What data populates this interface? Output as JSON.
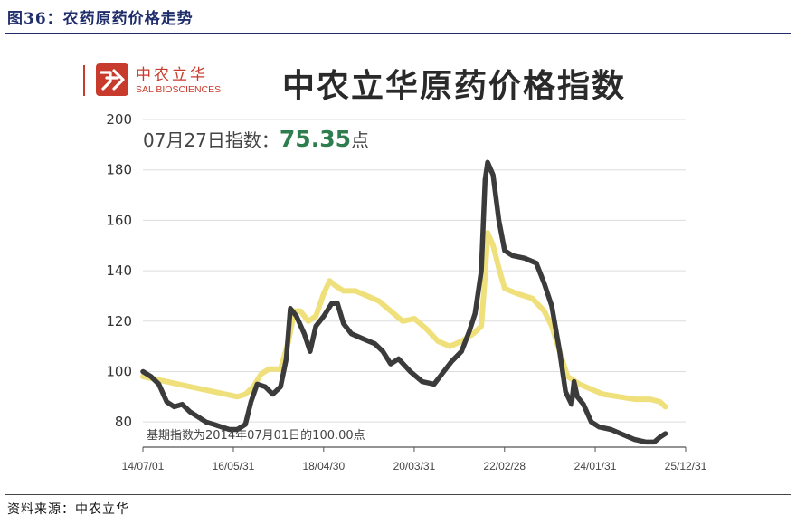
{
  "figure": {
    "caption": "图36：农药原药价格走势",
    "source": "资料来源：中农立华"
  },
  "logo": {
    "cn": "中农立华",
    "en": "SAL BIOSCIENCES",
    "color": "#c83b2c"
  },
  "chart_data": {
    "type": "line",
    "title": "中农立华原药价格指数",
    "xlabel": "",
    "ylabel": "",
    "ylim": [
      70,
      200
    ],
    "yticks": [
      80,
      100,
      120,
      140,
      160,
      180,
      200
    ],
    "xlim": [
      "2014-07-01",
      "2025-12-31"
    ],
    "xtick_labels": [
      "14/07/01",
      "16/05/31",
      "18/04/30",
      "20/03/31",
      "22/02/28",
      "24/01/31",
      "25/12/31"
    ],
    "xticks": [
      "2014-07-01",
      "2016-05-31",
      "2018-04-30",
      "2020-03-31",
      "2022-02-28",
      "2024-01-31",
      "2025-12-31"
    ],
    "grid": "horizontal",
    "legend": "none",
    "annotations": {
      "latest_prefix": "07月27日指数：",
      "latest_value": "75.35",
      "latest_suffix": "点",
      "base_note": "基期指数为2014年07月01日的100.00点"
    },
    "colors": {
      "black_series": "#3b3b3b",
      "yellow_series": "#efe07c",
      "value_highlight": "#2e7d4f",
      "grid": "#dddddd"
    },
    "series": [
      {
        "color": "#3b3b3b",
        "points": [
          [
            "2014-07-01",
            100
          ],
          [
            "2014-09-01",
            98
          ],
          [
            "2014-11-01",
            95
          ],
          [
            "2015-01-01",
            88
          ],
          [
            "2015-03-01",
            86
          ],
          [
            "2015-05-01",
            87
          ],
          [
            "2015-07-01",
            84
          ],
          [
            "2015-09-01",
            82
          ],
          [
            "2015-11-01",
            80
          ],
          [
            "2016-01-01",
            79
          ],
          [
            "2016-03-01",
            78
          ],
          [
            "2016-05-01",
            77
          ],
          [
            "2016-07-01",
            77
          ],
          [
            "2016-09-01",
            79
          ],
          [
            "2016-10-15",
            88
          ],
          [
            "2016-12-01",
            95
          ],
          [
            "2017-02-01",
            94
          ],
          [
            "2017-04-01",
            91
          ],
          [
            "2017-06-01",
            94
          ],
          [
            "2017-07-15",
            105
          ],
          [
            "2017-08-15",
            125
          ],
          [
            "2017-10-01",
            122
          ],
          [
            "2017-12-01",
            115
          ],
          [
            "2018-01-15",
            108
          ],
          [
            "2018-03-01",
            118
          ],
          [
            "2018-05-01",
            122
          ],
          [
            "2018-07-01",
            127
          ],
          [
            "2018-08-15",
            127
          ],
          [
            "2018-10-01",
            119
          ],
          [
            "2018-12-01",
            115
          ],
          [
            "2019-03-01",
            113
          ],
          [
            "2019-06-01",
            111
          ],
          [
            "2019-08-01",
            108
          ],
          [
            "2019-10-01",
            103
          ],
          [
            "2019-12-01",
            105
          ],
          [
            "2020-03-01",
            100
          ],
          [
            "2020-06-01",
            96
          ],
          [
            "2020-09-01",
            95
          ],
          [
            "2020-11-15",
            100
          ],
          [
            "2021-01-15",
            104
          ],
          [
            "2021-04-01",
            108
          ],
          [
            "2021-06-01",
            116
          ],
          [
            "2021-07-15",
            123
          ],
          [
            "2021-09-01",
            140
          ],
          [
            "2021-10-01",
            176
          ],
          [
            "2021-10-20",
            183
          ],
          [
            "2021-12-01",
            178
          ],
          [
            "2022-01-15",
            160
          ],
          [
            "2022-03-01",
            148
          ],
          [
            "2022-05-01",
            146
          ],
          [
            "2022-08-01",
            145
          ],
          [
            "2022-11-01",
            143
          ],
          [
            "2023-01-01",
            135
          ],
          [
            "2023-03-01",
            126
          ],
          [
            "2023-05-01",
            108
          ],
          [
            "2023-06-15",
            92
          ],
          [
            "2023-08-01",
            87
          ],
          [
            "2023-08-20",
            96
          ],
          [
            "2023-09-15",
            90
          ],
          [
            "2023-11-01",
            87
          ],
          [
            "2024-01-01",
            80
          ],
          [
            "2024-03-01",
            78
          ],
          [
            "2024-06-01",
            77
          ],
          [
            "2024-09-01",
            75
          ],
          [
            "2024-12-01",
            73
          ],
          [
            "2025-03-01",
            72
          ],
          [
            "2025-05-01",
            72
          ],
          [
            "2025-06-15",
            74
          ],
          [
            "2025-07-27",
            75.35
          ]
        ]
      },
      {
        "color": "#efe07c",
        "points": [
          [
            "2014-07-01",
            98
          ],
          [
            "2014-10-01",
            97
          ],
          [
            "2015-01-01",
            96
          ],
          [
            "2015-04-01",
            95
          ],
          [
            "2015-07-01",
            94
          ],
          [
            "2015-10-01",
            93
          ],
          [
            "2016-01-01",
            92
          ],
          [
            "2016-04-01",
            91
          ],
          [
            "2016-07-01",
            90
          ],
          [
            "2016-09-01",
            91
          ],
          [
            "2016-11-01",
            94
          ],
          [
            "2017-01-01",
            99
          ],
          [
            "2017-03-01",
            101
          ],
          [
            "2017-06-01",
            101
          ],
          [
            "2017-08-01",
            112
          ],
          [
            "2017-09-15",
            124
          ],
          [
            "2017-11-01",
            124
          ],
          [
            "2018-01-01",
            120
          ],
          [
            "2018-03-01",
            122
          ],
          [
            "2018-05-01",
            131
          ],
          [
            "2018-06-15",
            136
          ],
          [
            "2018-08-01",
            134
          ],
          [
            "2018-10-01",
            132
          ],
          [
            "2019-01-01",
            132
          ],
          [
            "2019-04-01",
            130
          ],
          [
            "2019-07-01",
            128
          ],
          [
            "2019-10-01",
            124
          ],
          [
            "2020-01-01",
            120
          ],
          [
            "2020-04-01",
            121
          ],
          [
            "2020-07-01",
            117
          ],
          [
            "2020-10-01",
            112
          ],
          [
            "2021-01-01",
            110
          ],
          [
            "2021-04-01",
            112
          ],
          [
            "2021-07-01",
            115
          ],
          [
            "2021-09-01",
            118
          ],
          [
            "2021-10-01",
            138
          ],
          [
            "2021-10-20",
            155
          ],
          [
            "2021-12-01",
            150
          ],
          [
            "2022-01-15",
            141
          ],
          [
            "2022-03-01",
            133
          ],
          [
            "2022-06-01",
            131
          ],
          [
            "2022-10-01",
            129
          ],
          [
            "2023-01-01",
            124
          ],
          [
            "2023-03-01",
            118
          ],
          [
            "2023-05-01",
            108
          ],
          [
            "2023-07-01",
            98
          ],
          [
            "2023-10-01",
            95
          ],
          [
            "2024-01-01",
            93
          ],
          [
            "2024-04-01",
            91
          ],
          [
            "2024-08-01",
            90
          ],
          [
            "2024-12-01",
            89
          ],
          [
            "2025-04-01",
            89
          ],
          [
            "2025-06-15",
            88
          ],
          [
            "2025-07-27",
            86
          ]
        ]
      }
    ]
  }
}
